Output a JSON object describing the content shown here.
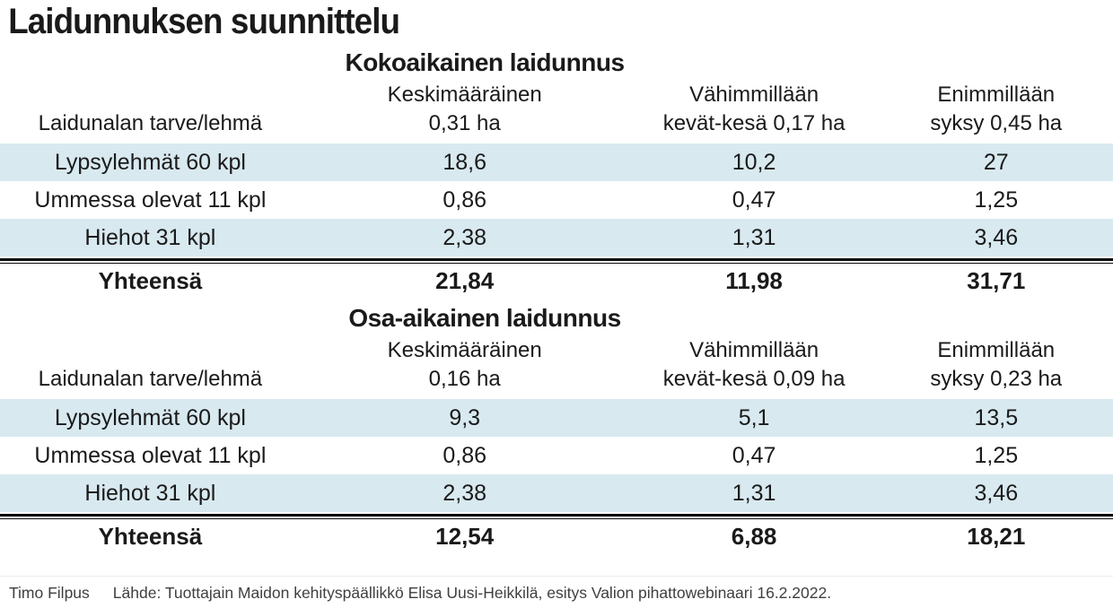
{
  "title": "Laidunnuksen suunnittelu",
  "colors": {
    "row_highlight": "#d8e9f0",
    "text": "#1a1a1a",
    "rule": "#0a0a0a"
  },
  "tables": [
    {
      "section_title": "Kokoaikainen laidunnus",
      "row_header_label": "Laidunalan tarve/lehmä",
      "columns": [
        {
          "line1": "Keskimääräinen",
          "line2": "0,31 ha"
        },
        {
          "line1": "Vähimmillään",
          "line2": "kevät-kesä 0,17 ha"
        },
        {
          "line1": "Enimmillään",
          "line2": "syksy 0,45 ha"
        }
      ],
      "rows": [
        {
          "label": "Lypsylehmät 60 kpl",
          "values": [
            "18,6",
            "10,2",
            "27"
          ]
        },
        {
          "label": "Ummessa olevat 11 kpl",
          "values": [
            "0,86",
            "0,47",
            "1,25"
          ]
        },
        {
          "label": "Hiehot 31 kpl",
          "values": [
            "2,38",
            "1,31",
            "3,46"
          ]
        }
      ],
      "total": {
        "label": "Yhteensä",
        "values": [
          "21,84",
          "11,98",
          "31,71"
        ]
      }
    },
    {
      "section_title": "Osa-aikainen laidunnus",
      "row_header_label": "Laidunalan tarve/lehmä",
      "columns": [
        {
          "line1": "Keskimääräinen",
          "line2": "0,16 ha"
        },
        {
          "line1": "Vähimmillään",
          "line2": "kevät-kesä 0,09 ha"
        },
        {
          "line1": "Enimmillään",
          "line2": "syksy 0,23 ha"
        }
      ],
      "rows": [
        {
          "label": "Lypsylehmät 60 kpl",
          "values": [
            "9,3",
            "5,1",
            "13,5"
          ]
        },
        {
          "label": "Ummessa olevat 11 kpl",
          "values": [
            "0,86",
            "0,47",
            "1,25"
          ]
        },
        {
          "label": "Hiehot 31 kpl",
          "values": [
            "2,38",
            "1,31",
            "3,46"
          ]
        }
      ],
      "total": {
        "label": "Yhteensä",
        "values": [
          "12,54",
          "6,88",
          "18,21"
        ]
      }
    }
  ],
  "footer": {
    "byline": "Timo Filpus",
    "source": "Lähde: Tuottajain Maidon kehityspäällikkö Elisa Uusi-Heikkilä, esitys Valion pihattowebinaari 16.2.2022."
  },
  "chart_data": [
    {
      "type": "table",
      "title": "Kokoaikainen laidunnus",
      "columns": [
        "Laidunalan tarve/lehmä",
        "Keskimääräinen 0,31 ha",
        "Vähimmillään kevät-kesä 0,17 ha",
        "Enimmillään syksy 0,45 ha"
      ],
      "rows": [
        [
          "Lypsylehmät 60 kpl",
          18.6,
          10.2,
          27
        ],
        [
          "Ummessa olevat 11 kpl",
          0.86,
          0.47,
          1.25
        ],
        [
          "Hiehot 31 kpl",
          2.38,
          1.31,
          3.46
        ],
        [
          "Yhteensä",
          21.84,
          11.98,
          31.71
        ]
      ]
    },
    {
      "type": "table",
      "title": "Osa-aikainen laidunnus",
      "columns": [
        "Laidunalan tarve/lehmä",
        "Keskimääräinen 0,16 ha",
        "Vähimmillään kevät-kesä 0,09 ha",
        "Enimmillään syksy 0,23 ha"
      ],
      "rows": [
        [
          "Lypsylehmät 60 kpl",
          9.3,
          5.1,
          13.5
        ],
        [
          "Ummessa olevat 11 kpl",
          0.86,
          0.47,
          1.25
        ],
        [
          "Hiehot 31 kpl",
          2.38,
          1.31,
          3.46
        ],
        [
          "Yhteensä",
          12.54,
          6.88,
          18.21
        ]
      ]
    }
  ]
}
